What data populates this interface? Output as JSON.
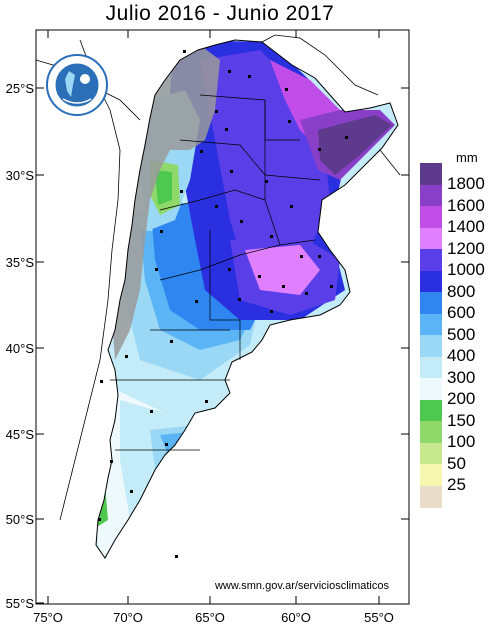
{
  "title": "Julio 2016 - Junio 2017",
  "credit": "www.smn.gov.ar/serviciosclimaticos",
  "logo_text": "SERVICIO METEOROLÓGICO NACIONAL · ARGENTINA",
  "latitude_labels": [
    "25°S",
    "30°S",
    "35°S",
    "40°S",
    "45°S",
    "50°S",
    "55°S"
  ],
  "longitude_labels": [
    "75°O",
    "70°O",
    "65°O",
    "60°O",
    "55°O"
  ],
  "legend": {
    "unit": "mm",
    "classes": [
      {
        "label": "1800",
        "color": "#5e3a8c"
      },
      {
        "label": "1600",
        "color": "#8a3fc9"
      },
      {
        "label": "1400",
        "color": "#c04de8"
      },
      {
        "label": "1200",
        "color": "#e07fff"
      },
      {
        "label": "1000",
        "color": "#5a3fe8"
      },
      {
        "label": "800",
        "color": "#2a2fe0"
      },
      {
        "label": "600",
        "color": "#2f86f0"
      },
      {
        "label": "500",
        "color": "#5ab4f5"
      },
      {
        "label": "400",
        "color": "#9ad8f5"
      },
      {
        "label": "300",
        "color": "#c4ecf8"
      },
      {
        "label": "200",
        "color": "#eef9fd"
      },
      {
        "label": "150",
        "color": "#4ec84e"
      },
      {
        "label": "100",
        "color": "#8fd96a"
      },
      {
        "label": "50",
        "color": "#c8e890"
      },
      {
        "label": "25",
        "color": "#f6f6b0"
      },
      {
        "label": "",
        "color": "#e9dcc8"
      }
    ]
  },
  "colors": {
    "relief_gray": "#9a9a9a",
    "outline": "#000000",
    "station": "#000000"
  }
}
